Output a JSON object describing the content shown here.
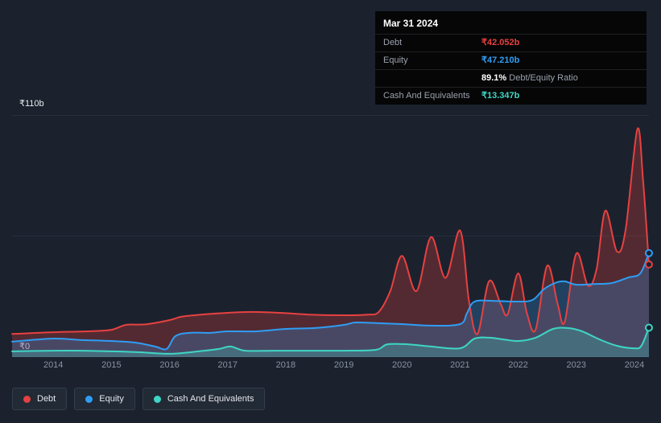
{
  "colors": {
    "background": "#1b222d",
    "debt": "#e64141",
    "equity": "#2f9df4",
    "cash": "#3ed6c4",
    "grid": "#272f3d",
    "text_muted": "#8a93a3",
    "text_light": "#e9ecf1"
  },
  "y_axis": {
    "max_label": "₹110b",
    "min_label": "₹0"
  },
  "tooltip": {
    "date": "Mar 31 2024",
    "debt_label": "Debt",
    "debt_value": "₹42.052b",
    "equity_label": "Equity",
    "equity_value": "₹47.210b",
    "ratio_value": "89.1%",
    "ratio_label": "Debt/Equity Ratio",
    "cash_label": "Cash And Equivalents",
    "cash_value": "₹13.347b"
  },
  "legend": {
    "debt": "Debt",
    "equity": "Equity",
    "cash": "Cash And Equivalents"
  },
  "chart_data": {
    "type": "area",
    "x_ticks": [
      2014,
      2015,
      2016,
      2017,
      2018,
      2019,
      2020,
      2021,
      2022,
      2023,
      2024
    ],
    "xlim": [
      2013.29,
      2024.25
    ],
    "ylim": [
      0,
      110
    ],
    "y_gridlines": [
      0,
      55,
      110
    ],
    "grid": "horizontal-only",
    "legend_position": "bottom-left",
    "y_unit": "₹ billions",
    "series": [
      {
        "name": "Debt",
        "color_key": "debt",
        "fill": "rgba(230,65,65,0.28)",
        "last_value_label": "₹42.052b",
        "points": [
          [
            2013.29,
            10.5
          ],
          [
            2014,
            11.3
          ],
          [
            2014.6,
            11.7
          ],
          [
            2015,
            12.4
          ],
          [
            2015.25,
            14.6
          ],
          [
            2015.6,
            14.9
          ],
          [
            2016,
            16.8
          ],
          [
            2016.2,
            18.3
          ],
          [
            2016.5,
            19.2
          ],
          [
            2017,
            20.1
          ],
          [
            2017.4,
            20.5
          ],
          [
            2017.9,
            20.1
          ],
          [
            2018.4,
            19.3
          ],
          [
            2019,
            19.0
          ],
          [
            2019.4,
            19.3
          ],
          [
            2019.6,
            20.5
          ],
          [
            2019.8,
            30.0
          ],
          [
            2020,
            46.0
          ],
          [
            2020.25,
            30.0
          ],
          [
            2020.5,
            54.5
          ],
          [
            2020.75,
            36.0
          ],
          [
            2021,
            57.5
          ],
          [
            2021.15,
            26.0
          ],
          [
            2021.3,
            10.5
          ],
          [
            2021.5,
            34.5
          ],
          [
            2021.7,
            24.0
          ],
          [
            2021.82,
            19.5
          ],
          [
            2022,
            38.0
          ],
          [
            2022.15,
            20.0
          ],
          [
            2022.3,
            12.5
          ],
          [
            2022.5,
            41.5
          ],
          [
            2022.68,
            24.0
          ],
          [
            2022.8,
            16.0
          ],
          [
            2023,
            47.0
          ],
          [
            2023.2,
            32.5
          ],
          [
            2023.35,
            40.0
          ],
          [
            2023.5,
            66.5
          ],
          [
            2023.7,
            48.0
          ],
          [
            2023.85,
            58.0
          ],
          [
            2024.05,
            103.5
          ],
          [
            2024.15,
            80.0
          ],
          [
            2024.25,
            42.052
          ]
        ]
      },
      {
        "name": "Equity",
        "color_key": "equity",
        "fill": "rgba(47,157,244,0.26)",
        "last_value_label": "₹47.210b",
        "points": [
          [
            2013.29,
            7.0
          ],
          [
            2014,
            8.4
          ],
          [
            2014.5,
            7.7
          ],
          [
            2015,
            7.3
          ],
          [
            2015.4,
            6.6
          ],
          [
            2015.75,
            4.8
          ],
          [
            2015.95,
            3.7
          ],
          [
            2016.1,
            9.5
          ],
          [
            2016.35,
            11.0
          ],
          [
            2016.7,
            11.0
          ],
          [
            2017,
            11.7
          ],
          [
            2017.5,
            11.7
          ],
          [
            2018,
            12.8
          ],
          [
            2018.5,
            13.2
          ],
          [
            2019,
            14.6
          ],
          [
            2019.2,
            15.7
          ],
          [
            2019.6,
            15.4
          ],
          [
            2020,
            15.0
          ],
          [
            2020.5,
            14.3
          ],
          [
            2021,
            15.0
          ],
          [
            2021.12,
            20.0
          ],
          [
            2021.25,
            25.2
          ],
          [
            2021.6,
            25.5
          ],
          [
            2022,
            25.2
          ],
          [
            2022.25,
            26.0
          ],
          [
            2022.45,
            31.0
          ],
          [
            2022.65,
            33.8
          ],
          [
            2022.8,
            34.4
          ],
          [
            2023,
            32.9
          ],
          [
            2023.3,
            33.2
          ],
          [
            2023.6,
            33.6
          ],
          [
            2023.9,
            36.2
          ],
          [
            2024.1,
            38.0
          ],
          [
            2024.25,
            47.21
          ]
        ]
      },
      {
        "name": "Cash And Equivalents",
        "color_key": "cash",
        "fill": "rgba(62,214,196,0.25)",
        "last_value_label": "₹13.347b",
        "points": [
          [
            2013.29,
            2.6
          ],
          [
            2014,
            2.9
          ],
          [
            2014.5,
            2.9
          ],
          [
            2015,
            2.6
          ],
          [
            2015.5,
            2.2
          ],
          [
            2016,
            1.5
          ],
          [
            2016.5,
            2.6
          ],
          [
            2016.85,
            3.7
          ],
          [
            2017.05,
            4.8
          ],
          [
            2017.3,
            2.9
          ],
          [
            2017.8,
            2.9
          ],
          [
            2018.4,
            2.9
          ],
          [
            2019,
            2.9
          ],
          [
            2019.55,
            3.3
          ],
          [
            2019.75,
            5.8
          ],
          [
            2020.1,
            5.8
          ],
          [
            2020.5,
            4.8
          ],
          [
            2021,
            4.0
          ],
          [
            2021.25,
            8.4
          ],
          [
            2021.5,
            8.8
          ],
          [
            2021.75,
            8.0
          ],
          [
            2022,
            7.3
          ],
          [
            2022.3,
            8.8
          ],
          [
            2022.6,
            12.8
          ],
          [
            2022.85,
            13.2
          ],
          [
            2023.1,
            11.7
          ],
          [
            2023.4,
            8.0
          ],
          [
            2023.7,
            5.1
          ],
          [
            2024,
            4.0
          ],
          [
            2024.12,
            5.1
          ],
          [
            2024.25,
            13.347
          ]
        ]
      }
    ]
  }
}
